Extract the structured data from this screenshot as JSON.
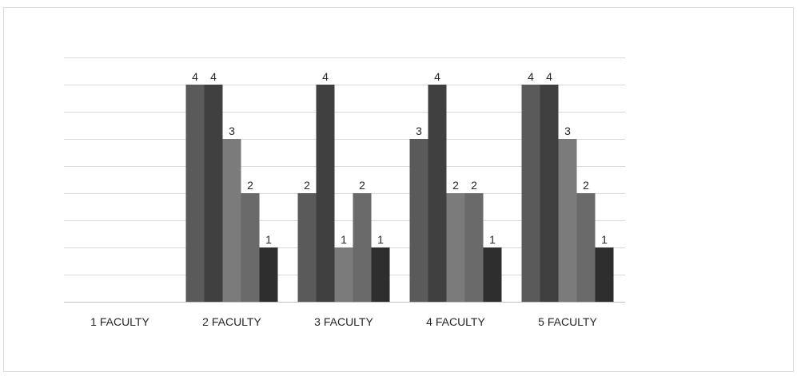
{
  "chart_data": {
    "type": "bar",
    "categories": [
      "1 FACULTY",
      "2 FACULTY",
      "3 FACULTY",
      "4 FACULTY",
      "5 FACULTY"
    ],
    "series": [
      {
        "values": [
          null,
          4,
          2,
          3,
          4
        ],
        "color": "#5a5a5a"
      },
      {
        "values": [
          null,
          4,
          4,
          4,
          4
        ],
        "color": "#404040"
      },
      {
        "values": [
          null,
          3,
          1,
          2,
          3
        ],
        "color": "#7b7b7b"
      },
      {
        "values": [
          null,
          2,
          2,
          2,
          2
        ],
        "color": "#6a6a6a"
      },
      {
        "values": [
          null,
          1,
          1,
          1,
          1
        ],
        "color": "#2e2e2e"
      }
    ],
    "title": "",
    "xlabel": "",
    "ylabel": "",
    "ylim": [
      0,
      4.5
    ],
    "y_gridline_step": 0.5,
    "grid": true,
    "legend": "none",
    "data_labels": true,
    "colors": {
      "gridline": "#d9d9d9",
      "axis": "#bfbfbf",
      "text": "#262626"
    }
  }
}
